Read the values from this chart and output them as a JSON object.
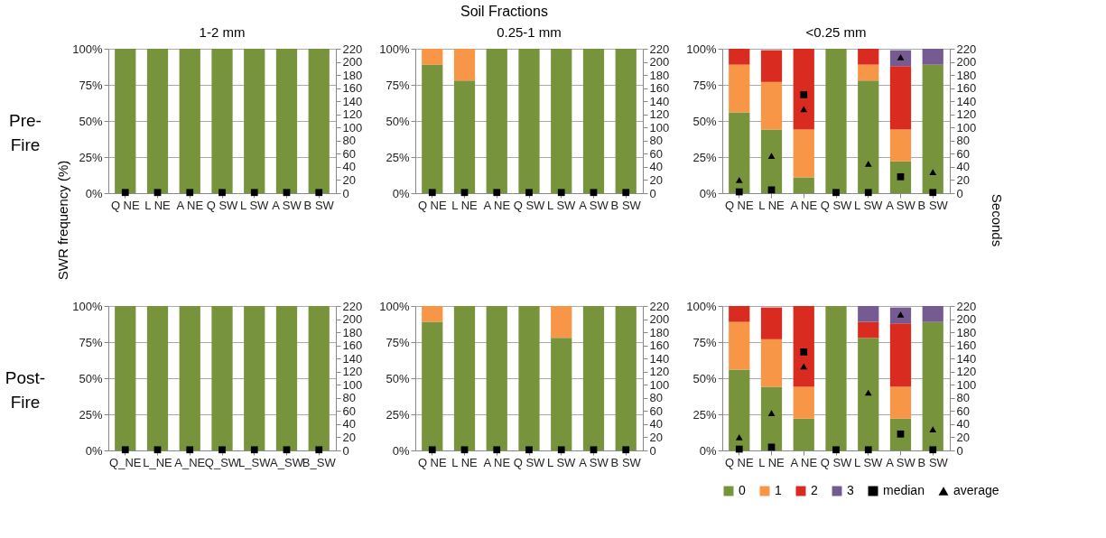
{
  "chart_data": [
    {
      "type": "bar",
      "title": "1-2 mm",
      "ylabel": "SWR frequency (%)",
      "annotations": [
        "Pre-\nFire"
      ],
      "stacked": true,
      "grid": "y",
      "categories": [
        "Q NE",
        "L NE",
        "A NE",
        "Q SW",
        "L SW",
        "A SW",
        "B SW"
      ],
      "ylim": [
        0,
        100
      ],
      "yticks": [
        {
          "value": 0,
          "label": "0%"
        },
        {
          "value": 25,
          "label": "25%"
        },
        {
          "value": 50,
          "label": "50%"
        },
        {
          "value": 75,
          "label": "75%"
        },
        {
          "value": 100,
          "label": "100%"
        }
      ],
      "y2lim": [
        0,
        220
      ],
      "y2ticks": [
        0,
        20,
        40,
        60,
        80,
        100,
        120,
        140,
        160,
        180,
        200,
        220
      ],
      "series": [
        {
          "color": "#77933c",
          "values": [
            100,
            100,
            100,
            100,
            100,
            100,
            100
          ]
        },
        {
          "type": "scatter",
          "axis": "y2",
          "marker": "square",
          "color": "#000000",
          "values": [
            1,
            1,
            1,
            1,
            1,
            1,
            1
          ]
        }
      ]
    },
    {
      "type": "bar",
      "title": "0.25-1 mm",
      "annotations": [
        "Soil Fractions"
      ],
      "stacked": true,
      "grid": "y",
      "categories": [
        "Q NE",
        "L NE",
        "A NE",
        "Q SW",
        "L SW",
        "A SW",
        "B SW"
      ],
      "ylim": [
        0,
        100
      ],
      "yticks": [
        {
          "value": 0,
          "label": "0%"
        },
        {
          "value": 25,
          "label": "25%"
        },
        {
          "value": 50,
          "label": "50%"
        },
        {
          "value": 75,
          "label": "75%"
        },
        {
          "value": 100,
          "label": "100%"
        }
      ],
      "y2lim": [
        0,
        220
      ],
      "y2ticks": [
        0,
        20,
        40,
        60,
        80,
        100,
        120,
        140,
        160,
        180,
        200,
        220
      ],
      "series": [
        {
          "color": "#77933c",
          "values": [
            89,
            78,
            100,
            100,
            100,
            100,
            100
          ]
        },
        {
          "color": "#f79646",
          "values": [
            11,
            22,
            null,
            null,
            null,
            null,
            null
          ]
        },
        {
          "type": "scatter",
          "axis": "y2",
          "marker": "square",
          "color": "#000000",
          "values": [
            1,
            1,
            1,
            1,
            1,
            1,
            1
          ]
        }
      ]
    },
    {
      "type": "bar",
      "title": "<0.25 mm",
      "y2label": "Seconds",
      "stacked": true,
      "grid": "y",
      "categories": [
        "Q NE",
        "L NE",
        "A NE",
        "Q SW",
        "L SW",
        "A SW",
        "B SW"
      ],
      "ylim": [
        0,
        100
      ],
      "yticks": [
        {
          "value": 0,
          "label": "0%"
        },
        {
          "value": 25,
          "label": "25%"
        },
        {
          "value": 50,
          "label": "50%"
        },
        {
          "value": 75,
          "label": "75%"
        },
        {
          "value": 100,
          "label": "100%"
        }
      ],
      "y2lim": [
        0,
        220
      ],
      "y2ticks": [
        0,
        20,
        40,
        60,
        80,
        100,
        120,
        140,
        160,
        180,
        200,
        220
      ],
      "series": [
        {
          "color": "#77933c",
          "values": [
            56,
            44,
            11,
            100,
            78,
            22,
            89
          ]
        },
        {
          "color": "#f79646",
          "values": [
            33,
            33,
            33,
            null,
            11,
            22,
            null
          ]
        },
        {
          "color": "#d92b1f",
          "values": [
            11,
            22,
            56,
            null,
            11,
            44,
            null
          ]
        },
        {
          "color": "#765a92",
          "values": [
            null,
            null,
            null,
            null,
            null,
            11,
            11
          ]
        },
        {
          "type": "scatter",
          "axis": "y2",
          "marker": "square",
          "color": "#000000",
          "values": [
            2,
            5,
            150,
            1,
            1,
            25,
            1
          ]
        },
        {
          "type": "scatter",
          "axis": "y2",
          "marker": "triangle",
          "color": "#000000",
          "values": [
            20,
            57,
            128,
            null,
            45,
            207,
            32
          ]
        }
      ]
    },
    {
      "type": "bar",
      "annotations": [
        "Post-\nFire"
      ],
      "stacked": true,
      "grid": "y",
      "categories": [
        "Q_NE",
        "L_NE",
        "A_NE",
        "Q_SW",
        "L_SW",
        "A_SW",
        "B_SW"
      ],
      "ylim": [
        0,
        100
      ],
      "yticks": [
        {
          "value": 0,
          "label": "0%"
        },
        {
          "value": 25,
          "label": "25%"
        },
        {
          "value": 50,
          "label": "50%"
        },
        {
          "value": 75,
          "label": "75%"
        },
        {
          "value": 100,
          "label": "100%"
        }
      ],
      "y2lim": [
        0,
        220
      ],
      "y2ticks": [
        0,
        20,
        40,
        60,
        80,
        100,
        120,
        140,
        160,
        180,
        200,
        220
      ],
      "series": [
        {
          "color": "#77933c",
          "values": [
            100,
            100,
            100,
            100,
            100,
            100,
            100
          ]
        },
        {
          "type": "scatter",
          "axis": "y2",
          "marker": "square",
          "color": "#000000",
          "values": [
            1,
            1,
            1,
            1,
            1,
            1,
            1
          ]
        }
      ]
    },
    {
      "type": "bar",
      "stacked": true,
      "grid": "y",
      "categories": [
        "Q NE",
        "L NE",
        "A NE",
        "Q SW",
        "L SW",
        "A SW",
        "B SW"
      ],
      "ylim": [
        0,
        100
      ],
      "yticks": [
        {
          "value": 0,
          "label": "0%"
        },
        {
          "value": 25,
          "label": "25%"
        },
        {
          "value": 50,
          "label": "50%"
        },
        {
          "value": 75,
          "label": "75%"
        },
        {
          "value": 100,
          "label": "100%"
        }
      ],
      "y2lim": [
        0,
        220
      ],
      "y2ticks": [
        0,
        20,
        40,
        60,
        80,
        100,
        120,
        140,
        160,
        180,
        200,
        220
      ],
      "series": [
        {
          "color": "#77933c",
          "values": [
            89,
            100,
            100,
            100,
            78,
            100,
            100
          ]
        },
        {
          "color": "#f79646",
          "values": [
            11,
            null,
            null,
            null,
            22,
            null,
            null
          ]
        },
        {
          "type": "scatter",
          "axis": "y2",
          "marker": "square",
          "color": "#000000",
          "values": [
            1,
            1,
            1,
            1,
            1,
            1,
            1
          ]
        }
      ]
    },
    {
      "type": "bar",
      "legend": "bottom",
      "stacked": true,
      "grid": "y",
      "categories": [
        "Q NE",
        "L NE",
        "A NE",
        "Q SW",
        "L SW",
        "A SW",
        "B SW"
      ],
      "ylim": [
        0,
        100
      ],
      "yticks": [
        {
          "value": 0,
          "label": "0%"
        },
        {
          "value": 25,
          "label": "25%"
        },
        {
          "value": 50,
          "label": "50%"
        },
        {
          "value": 75,
          "label": "75%"
        },
        {
          "value": 100,
          "label": "100%"
        }
      ],
      "y2lim": [
        0,
        220
      ],
      "y2ticks": [
        0,
        20,
        40,
        60,
        80,
        100,
        120,
        140,
        160,
        180,
        200,
        220
      ],
      "series": [
        {
          "name": "0",
          "color": "#77933c",
          "values": [
            56,
            44,
            22,
            100,
            78,
            22,
            89
          ]
        },
        {
          "name": "1",
          "color": "#f79646",
          "values": [
            33,
            33,
            22,
            null,
            null,
            22,
            null
          ]
        },
        {
          "name": "2",
          "color": "#d92b1f",
          "values": [
            11,
            22,
            56,
            null,
            11,
            44,
            null
          ]
        },
        {
          "name": "3",
          "color": "#765a92",
          "values": [
            null,
            null,
            null,
            null,
            11,
            11,
            11
          ]
        },
        {
          "name": "median",
          "type": "scatter",
          "axis": "y2",
          "marker": "square",
          "color": "#000000",
          "values": [
            2,
            5,
            150,
            1,
            1,
            25,
            1
          ]
        },
        {
          "name": "average",
          "type": "scatter",
          "axis": "y2",
          "marker": "triangle",
          "color": "#000000",
          "values": [
            20,
            57,
            128,
            null,
            88,
            207,
            32
          ]
        }
      ]
    }
  ]
}
